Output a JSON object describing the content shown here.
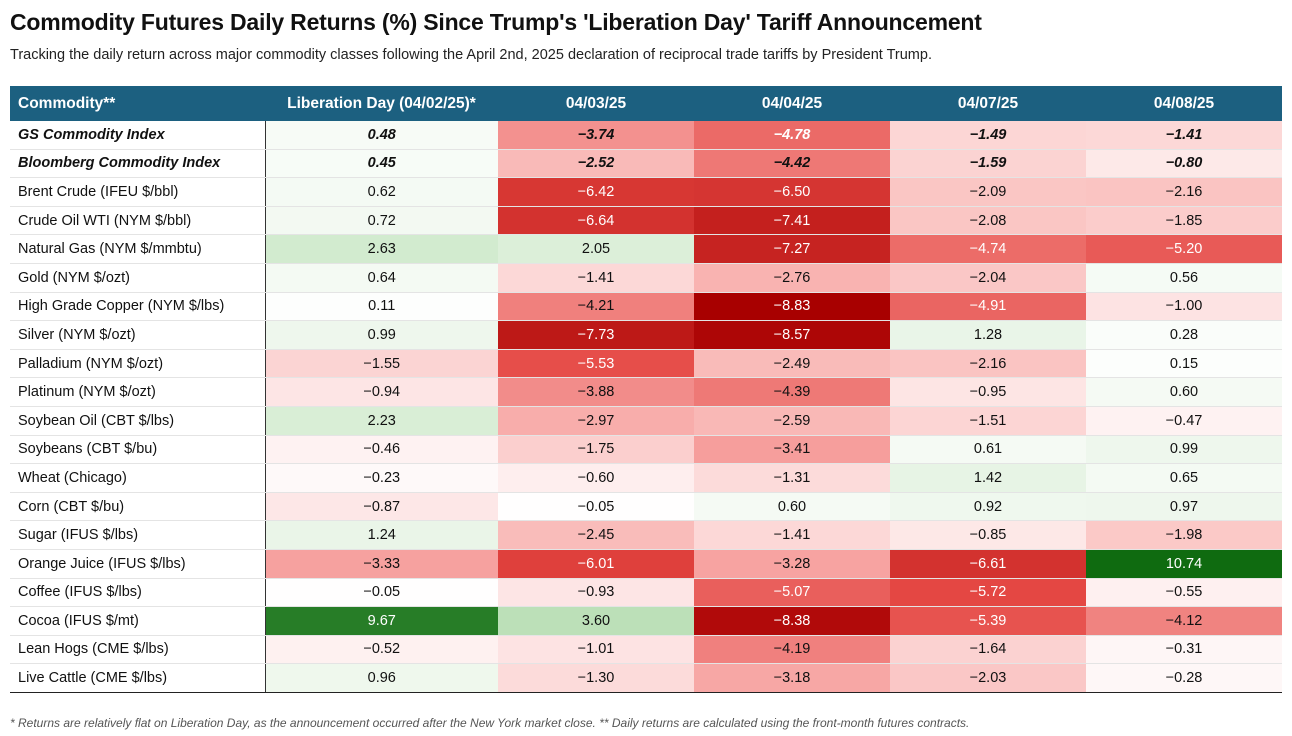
{
  "title": "Commodity Futures Daily Returns (%) Since Trump's 'Liberation Day' Tariff Announcement",
  "subtitle": "Tracking the daily return across major commodity classes following the April 2nd, 2025 declaration of reciprocal trade tariffs by President Trump.",
  "footnote": "* Returns are relatively flat on Liberation Day, as the announcement occurred after the New York market close. ** Daily returns are calculated using the front-month futures contracts.",
  "colors": {
    "header_bg": "#1c6080",
    "positive_max": "#0f6b10",
    "negative_max": "#a80000",
    "neutral": "#ffffff"
  },
  "chart_data": {
    "type": "table",
    "columns": [
      "Commodity**",
      "Liberation Day (04/02/25)*",
      "04/03/25",
      "04/04/25",
      "04/07/25",
      "04/08/25"
    ],
    "rows": [
      {
        "name": "GS Commodity Index",
        "values": [
          0.48,
          -3.74,
          -4.78,
          -1.49,
          -1.41
        ],
        "bold": true,
        "sep": false
      },
      {
        "name": "Bloomberg Commodity Index",
        "values": [
          0.45,
          -2.52,
          -4.42,
          -1.59,
          -0.8
        ],
        "bold": true,
        "sep": false
      },
      {
        "name": "Brent Crude (IFEU $/bbl)",
        "values": [
          0.62,
          -6.42,
          -6.5,
          -2.09,
          -2.16
        ],
        "bold": false,
        "sep": true
      },
      {
        "name": "Crude Oil WTI (NYM $/bbl)",
        "values": [
          0.72,
          -6.64,
          -7.41,
          -2.08,
          -1.85
        ],
        "bold": false,
        "sep": false
      },
      {
        "name": "Natural Gas (NYM $/mmbtu)",
        "values": [
          2.63,
          2.05,
          -7.27,
          -4.74,
          -5.2
        ],
        "bold": false,
        "sep": false
      },
      {
        "name": "Gold (NYM $/ozt)",
        "values": [
          0.64,
          -1.41,
          -2.76,
          -2.04,
          0.56
        ],
        "bold": false,
        "sep": true
      },
      {
        "name": "High Grade Copper (NYM $/lbs)",
        "values": [
          0.11,
          -4.21,
          -8.83,
          -4.91,
          -1.0
        ],
        "bold": false,
        "sep": false
      },
      {
        "name": "Silver (NYM $/ozt)",
        "values": [
          0.99,
          -7.73,
          -8.57,
          1.28,
          0.28
        ],
        "bold": false,
        "sep": false
      },
      {
        "name": "Palladium (NYM $/ozt)",
        "values": [
          -1.55,
          -5.53,
          -2.49,
          -2.16,
          0.15
        ],
        "bold": false,
        "sep": false
      },
      {
        "name": "Platinum (NYM $/ozt)",
        "values": [
          -0.94,
          -3.88,
          -4.39,
          -0.95,
          0.6
        ],
        "bold": false,
        "sep": false
      },
      {
        "name": "Soybean Oil (CBT $/lbs)",
        "values": [
          2.23,
          -2.97,
          -2.59,
          -1.51,
          -0.47
        ],
        "bold": false,
        "sep": true
      },
      {
        "name": "Soybeans (CBT $/bu)",
        "values": [
          -0.46,
          -1.75,
          -3.41,
          0.61,
          0.99
        ],
        "bold": false,
        "sep": false
      },
      {
        "name": "Wheat (Chicago)",
        "values": [
          -0.23,
          -0.6,
          -1.31,
          1.42,
          0.65
        ],
        "bold": false,
        "sep": false
      },
      {
        "name": "Corn (CBT $/bu)",
        "values": [
          -0.87,
          -0.05,
          0.6,
          0.92,
          0.97
        ],
        "bold": false,
        "sep": false
      },
      {
        "name": "Sugar (IFUS $/lbs)",
        "values": [
          1.24,
          -2.45,
          -1.41,
          -0.85,
          -1.98
        ],
        "bold": false,
        "sep": true
      },
      {
        "name": "Orange Juice (IFUS $/lbs)",
        "values": [
          -3.33,
          -6.01,
          -3.28,
          -6.61,
          10.74
        ],
        "bold": false,
        "sep": false
      },
      {
        "name": "Coffee (IFUS $/lbs)",
        "values": [
          -0.05,
          -0.93,
          -5.07,
          -5.72,
          -0.55
        ],
        "bold": false,
        "sep": false
      },
      {
        "name": "Cocoa (IFUS $/mt)",
        "values": [
          9.67,
          3.6,
          -8.38,
          -5.39,
          -4.12
        ],
        "bold": false,
        "sep": false
      },
      {
        "name": "Lean Hogs (CME $/lbs)",
        "values": [
          -0.52,
          -1.01,
          -4.19,
          -1.64,
          -0.31
        ],
        "bold": false,
        "sep": true
      },
      {
        "name": "Live Cattle (CME $/lbs)",
        "values": [
          0.96,
          -1.3,
          -3.18,
          -2.03,
          -0.28
        ],
        "bold": false,
        "sep": false
      }
    ],
    "color_scale": {
      "negative_extreme": -8.83,
      "positive_extreme": 10.74
    }
  }
}
